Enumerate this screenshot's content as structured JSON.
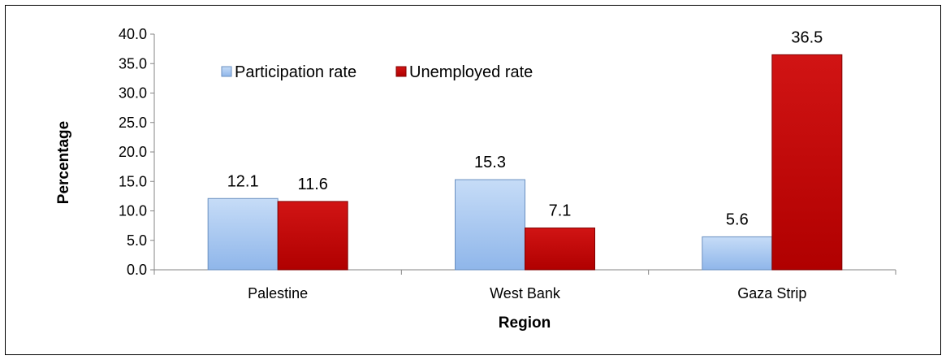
{
  "chart_data": {
    "type": "bar",
    "categories": [
      "Palestine",
      "West Bank",
      "Gaza Strip"
    ],
    "series": [
      {
        "name": "Participation rate",
        "values": [
          12.1,
          15.3,
          5.6
        ],
        "color": "#9dc3f0"
      },
      {
        "name": "Unemployed rate",
        "values": [
          11.6,
          7.1,
          36.5
        ],
        "color": "#c00000"
      }
    ],
    "xlabel": "Region",
    "ylabel": "Percentage",
    "ylim": [
      0,
      40
    ],
    "yticks": [
      "0.0",
      "5.0",
      "10.0",
      "15.0",
      "20.0",
      "25.0",
      "30.0",
      "35.0",
      "40.0"
    ],
    "data_labels": [
      [
        "12.1",
        "15.3",
        "5.6"
      ],
      [
        "11.6",
        "7.1",
        "36.5"
      ]
    ],
    "grid": false,
    "legend_position": "top-left"
  }
}
